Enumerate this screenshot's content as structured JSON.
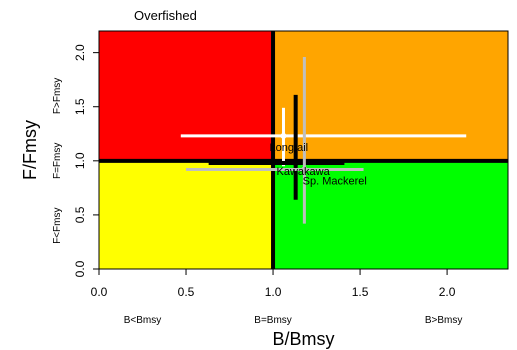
{
  "chart_data": {
    "type": "scatter",
    "title": "",
    "quadrant_title": "Overfished",
    "xlabel": "B/Bmsy",
    "ylabel": "F/Fmsy",
    "xlim": [
      0,
      2.35
    ],
    "ylim": [
      0,
      2.2
    ],
    "xticks": [
      "0.0",
      "0.5",
      "1.0",
      "1.5",
      "2.0"
    ],
    "xtick_values": [
      0,
      0.5,
      1.0,
      1.5,
      2.0
    ],
    "yticks": [
      "0.0",
      "0.5",
      "1.0",
      "1.5",
      "2.0"
    ],
    "ytick_values": [
      0,
      0.5,
      1.0,
      1.5,
      2.0
    ],
    "x_region_labels": [
      {
        "text": "B<Bmsy",
        "x": 0.25
      },
      {
        "text": "B=Bmsy",
        "x": 1.0
      },
      {
        "text": "B>Bmsy",
        "x": 1.98
      }
    ],
    "y_region_labels": [
      {
        "text": "F>Fmsy",
        "y": 1.6
      },
      {
        "text": "F=Fmsy",
        "y": 1.0
      },
      {
        "text": "F<Fmsy",
        "y": 0.4
      }
    ],
    "reference_lines": {
      "b_bmsy": 1.0,
      "f_fmsy": 1.0
    },
    "quadrants": [
      {
        "name": "overfished-overfishing",
        "x": [
          0,
          1
        ],
        "y": [
          1,
          2.2
        ],
        "color": "#ff0000"
      },
      {
        "name": "healthy-overfishing",
        "x": [
          1,
          2.35
        ],
        "y": [
          1,
          2.2
        ],
        "color": "#ffa500"
      },
      {
        "name": "overfished-no-overfishing",
        "x": [
          0,
          1
        ],
        "y": [
          0,
          1
        ],
        "color": "#ffff00"
      },
      {
        "name": "healthy-no-overfishing",
        "x": [
          1,
          2.35
        ],
        "y": [
          0,
          1
        ],
        "color": "#00ff00"
      }
    ],
    "series": [
      {
        "name": "Longtail",
        "x": 1.06,
        "y": 1.23,
        "x_range": [
          0.47,
          2.11
        ],
        "y_range": [
          0.95,
          1.49
        ],
        "color": "#ffffff",
        "label_x": 0.98,
        "label_y": 1.09
      },
      {
        "name": "Kawakawa",
        "x": 1.13,
        "y": 0.98,
        "x_range": [
          0.63,
          1.41
        ],
        "y_range": [
          0.64,
          1.61
        ],
        "color": "#000000",
        "label_x": 1.02,
        "label_y": 0.87
      },
      {
        "name": "Sp. Mackerel",
        "x": 1.18,
        "y": 0.92,
        "x_range": [
          0.5,
          1.52
        ],
        "y_range": [
          0.42,
          1.96
        ],
        "color": "#bfbfbf",
        "label_x": 1.17,
        "label_y": 0.78
      }
    ]
  }
}
